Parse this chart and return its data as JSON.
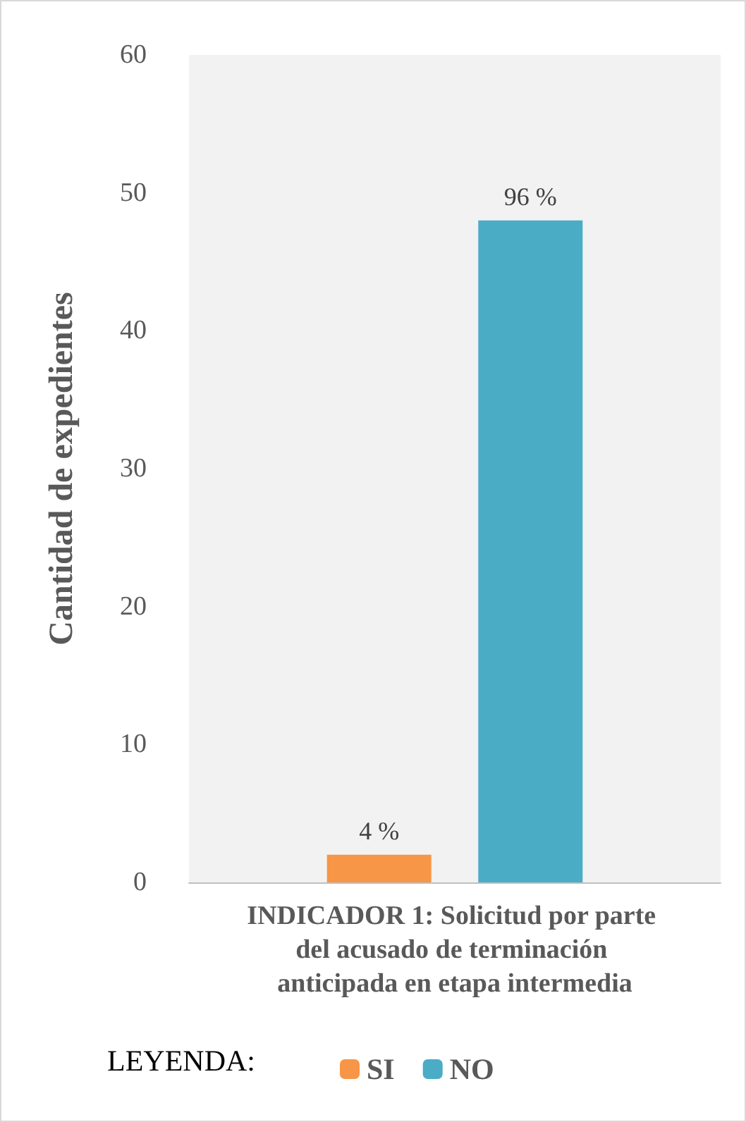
{
  "chart_data": {
    "type": "bar",
    "ylabel": "Cantidad de expedientes",
    "legend_title": "LEYENDA:",
    "categories": [
      "INDICADOR 1: Solicitud por parte del acusado de terminación anticipada en etapa intermedia"
    ],
    "series": [
      {
        "name": "SI",
        "color": "#f79646",
        "values": [
          2
        ]
      },
      {
        "name": "NO",
        "color": "#4bacc6",
        "values": [
          48
        ]
      }
    ],
    "annotations": [
      "4 %",
      "96 %"
    ],
    "ylim": [
      0,
      60
    ],
    "yticks": [
      0,
      10,
      20,
      30,
      40,
      50,
      60
    ],
    "grid": false,
    "legend": "bottom"
  }
}
